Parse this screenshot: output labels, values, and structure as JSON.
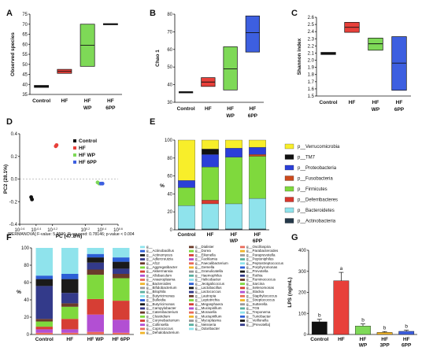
{
  "panel_labels": [
    "A",
    "B",
    "C",
    "D",
    "E",
    "F",
    "G"
  ],
  "chart_data": [
    {
      "panel": "A",
      "type": "box",
      "ylabel": "Observed species",
      "ylim": [
        35,
        75
      ],
      "yticks": [
        35,
        40,
        45,
        50,
        55,
        60,
        65,
        70,
        75
      ],
      "categories": [
        "Control",
        "HF",
        "HF WP",
        "HF 6PP"
      ],
      "boxes": [
        {
          "q1": 38.5,
          "median": 39,
          "q3": 39.5,
          "color": "#111111"
        },
        {
          "q1": 45.5,
          "median": 46.5,
          "q3": 47.5,
          "color": "#e8403a"
        },
        {
          "q1": 49,
          "median": 59.5,
          "q3": 70,
          "color": "#7ed957"
        },
        {
          "q1": 69.7,
          "median": 70,
          "q3": 70.3,
          "color": "#111111"
        }
      ]
    },
    {
      "panel": "B",
      "type": "box",
      "ylabel": "Chao 1",
      "ylim": [
        30,
        80
      ],
      "yticks": [
        30,
        40,
        50,
        60,
        70,
        80
      ],
      "categories": [
        "Control",
        "HF",
        "HF WP",
        "HF 6PP"
      ],
      "boxes": [
        {
          "q1": 36,
          "median": 36,
          "q3": 36,
          "color": "#111111"
        },
        {
          "q1": 39,
          "median": 41.5,
          "q3": 44,
          "color": "#e8403a"
        },
        {
          "q1": 37,
          "median": 49,
          "q3": 61.5,
          "color": "#7ed957"
        },
        {
          "q1": 58.5,
          "median": 69.5,
          "q3": 79,
          "color": "#3d5fe0"
        }
      ]
    },
    {
      "panel": "C",
      "type": "box",
      "ylabel": "Shannon index",
      "ylim": [
        1.5,
        2.6
      ],
      "yticks": [
        1.5,
        1.6,
        1.7,
        1.8,
        1.9,
        2.0,
        2.1,
        2.2,
        2.3,
        2.4,
        2.5,
        2.6
      ],
      "categories": [
        "Control",
        "HF",
        "HF WP",
        "HF 6PP"
      ],
      "boxes": [
        {
          "q1": 2.08,
          "median": 2.09,
          "q3": 2.11,
          "color": "#111111"
        },
        {
          "q1": 2.39,
          "median": 2.46,
          "q3": 2.53,
          "color": "#e8403a"
        },
        {
          "q1": 2.14,
          "median": 2.23,
          "q3": 2.31,
          "color": "#7ed957"
        },
        {
          "q1": 1.58,
          "median": 1.96,
          "q3": 2.33,
          "color": "#3d5fe0"
        }
      ]
    },
    {
      "panel": "D",
      "type": "scatter",
      "xlabel": "PC (47.8%)",
      "ylabel": "PC2 (28.1%)",
      "x_tick_labels": [
        "10^-0.6",
        "10^-0.4",
        "10^-0.2",
        "10^0.2",
        "10^0.4",
        "10^0.6"
      ],
      "y_tick_labels": [
        "0.4",
        "0.2",
        "0.0",
        "-0.2",
        "-0.4"
      ],
      "xlim": [
        -0.6,
        0.6
      ],
      "ylim": [
        -0.4,
        0.4
      ],
      "legend": [
        "Control",
        "HF",
        "HF WP",
        "HF 6PP"
      ],
      "series": [
        {
          "name": "Control",
          "color": "#111111",
          "points": [
            [
              -0.46,
              -0.16
            ],
            [
              -0.45,
              -0.18
            ]
          ]
        },
        {
          "name": "HF",
          "color": "#e8403a",
          "points": [
            [
              -0.16,
              0.29
            ],
            [
              -0.15,
              0.3
            ]
          ]
        },
        {
          "name": "HF WP",
          "color": "#7ed957",
          "points": [
            [
              0.35,
              -0.03
            ],
            [
              0.37,
              -0.04
            ]
          ]
        },
        {
          "name": "HF 6PP",
          "color": "#3d5fe0",
          "points": [
            [
              0.39,
              -0.04
            ],
            [
              0.41,
              -0.04
            ]
          ]
        }
      ],
      "caption": "[PERMANOVA] F-value: 5.9596; R-squared: 0.78146; p-value < 0.004"
    },
    {
      "panel": "E",
      "type": "bar",
      "stacked": true,
      "ylabel": "%",
      "ylim": [
        0,
        100
      ],
      "yticks": [
        0,
        20,
        40,
        60,
        80,
        100
      ],
      "categories": [
        "Control",
        "HF",
        "HF WP",
        "HF 6PP"
      ],
      "series": [
        {
          "name": "p__Actinobacteria",
          "color": "#25394a",
          "values": [
            1,
            1,
            1,
            1
          ]
        },
        {
          "name": "p__Bacteroidetes",
          "color": "#8fe3ec",
          "values": [
            26,
            28,
            28,
            34
          ]
        },
        {
          "name": "p__Deferribacteres",
          "color": "#d8372d",
          "values": [
            0,
            4,
            0,
            0
          ]
        },
        {
          "name": "p__Firmicutes",
          "color": "#7fd93d",
          "values": [
            20,
            37,
            52,
            47
          ]
        },
        {
          "name": "p__Fusobacteria",
          "color": "#cc4a1c",
          "values": [
            0,
            0,
            0,
            2
          ]
        },
        {
          "name": "p__Proteobacteria",
          "color": "#2b3fd8",
          "values": [
            8,
            14,
            10,
            8
          ]
        },
        {
          "name": "p__TM7",
          "color": "#111111",
          "values": [
            0,
            6,
            0,
            0
          ]
        },
        {
          "name": "p__Verrucomicrobia",
          "color": "#f8ee2a",
          "values": [
            45,
            10,
            9,
            8
          ]
        }
      ],
      "legend_order": [
        "p__Verrucomicrobia",
        "p__TM7",
        "p__Proteobacteria",
        "p__Fusobacteria",
        "p__Firmicutes",
        "p__Deferribacteres",
        "p__Bacteroidetes",
        "p__Actinobacteria"
      ]
    },
    {
      "panel": "F",
      "type": "bar",
      "stacked": true,
      "ylabel": "%",
      "ylim": [
        0,
        100
      ],
      "yticks": [
        0,
        20,
        40,
        60,
        80,
        100
      ],
      "categories": [
        "Control",
        "HF",
        "HF WP",
        "HF 6PP"
      ],
      "series": [
        {
          "color": "#e86b5a",
          "values": [
            2,
            2,
            3,
            2
          ]
        },
        {
          "color": "#b24fd3",
          "values": [
            4,
            4,
            20,
            15
          ]
        },
        {
          "color": "#d63e34",
          "values": [
            3,
            12,
            18,
            22
          ]
        },
        {
          "color": "#7fd93d",
          "values": [
            6,
            14,
            28,
            26
          ]
        },
        {
          "color": "#6a3a2a",
          "values": [
            3,
            4,
            6,
            5
          ]
        },
        {
          "color": "#333a8a",
          "values": [
            38,
            12,
            8,
            6
          ]
        },
        {
          "color": "#1a1a1a",
          "values": [
            8,
            16,
            6,
            8
          ]
        },
        {
          "color": "#2c5fd6",
          "values": [
            4,
            6,
            4,
            5
          ]
        },
        {
          "color": "#8fe3ec",
          "values": [
            32,
            30,
            7,
            11
          ]
        }
      ],
      "legend_columns": [
        [
          "g__",
          "g__Actinobacillus",
          "g__Actinomyces",
          "g__Adlercreutzia",
          "g__Af12",
          "g__Aggregatibacter",
          "g__Akkermansia",
          "g__Allobaculum",
          "g__Anaeroplasma",
          "g__Bacteroides",
          "g__Bifidobacterium",
          "g__Bilophila",
          "g__Butyricimonas",
          "g__Bulleidia",
          "g__Butyricimonas",
          "g__Campylobacter",
          "g__Catenibacterium",
          "g__Clostridium",
          "g__Corynebacterium",
          "g__Collinsella",
          "g__Coprococcus",
          "g__Dehalobacterium"
        ],
        [
          "g__Dialister",
          "g__Dorea",
          "g__Eikenella",
          "g__Facklamia",
          "g__Faecalibacterium",
          "g__Gemella",
          "g__Granulicatella",
          "g__Haemophilus",
          "g__Helicobacter",
          "g__Jeotgalicoccus",
          "g__Lactobacillus",
          "g__Lactococcus",
          "g__Lautropia",
          "g__Leptotrichia",
          "g__Megasphaera",
          "g__Mucispirillum",
          "g__Moraxella",
          "g__Mucispirillum",
          "g__Mycoplasma",
          "g__Neisseria",
          "g__Odoribacter"
        ],
        [
          "g__Oscillospira",
          "g__Parabacteroides",
          "g__Paraprevotella",
          "g__Peptoniphilus",
          "g__Peptostreptococcus",
          "g__Porphyromonas",
          "g__Prevotella",
          "g__Rothia",
          "g__Ruminococcus",
          "g__Sarcina",
          "g__Selenomonas",
          "g__Slackia",
          "g__Staphylococcus",
          "g__Streptococcus",
          "g__Sutterella",
          "g__TG5",
          "g__Treponema",
          "g__Turicibacter",
          "g__Veillonella",
          "g__[Prevotella]"
        ]
      ]
    },
    {
      "panel": "G",
      "type": "bar",
      "ylabel": "LPS (ng/mL)",
      "ylim": [
        0,
        400
      ],
      "yticks": [
        0,
        100,
        200,
        300,
        400
      ],
      "categories": [
        "Control",
        "HF",
        "HF WP",
        "HF 3PP",
        "HF 6PP"
      ],
      "values": [
        60,
        255,
        40,
        10,
        15
      ],
      "errors": [
        12,
        40,
        10,
        4,
        5
      ],
      "colors": [
        "#111111",
        "#e8403a",
        "#7ed957",
        "#f0b429",
        "#3d5fe0"
      ],
      "letters": [
        "b",
        "a",
        "b",
        "b",
        "b"
      ]
    }
  ]
}
